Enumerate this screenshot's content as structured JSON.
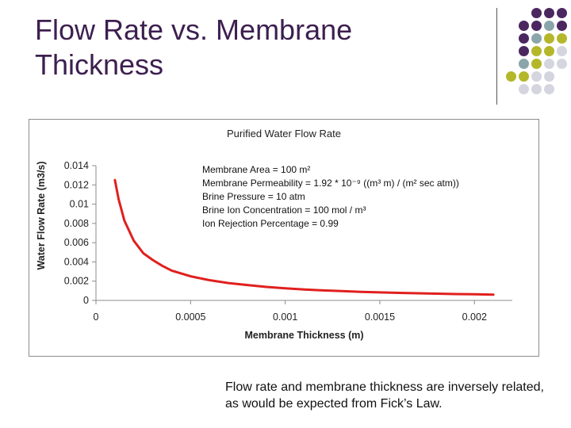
{
  "slide": {
    "title": "Flow Rate vs. Membrane Thickness",
    "caption": "Flow rate and membrane thickness are inversely related, as would be expected from Fick’s Law."
  },
  "decoration": {
    "dot_colors": [
      [
        "#ffffff",
        "#ffffff",
        "#4b2760",
        "#4b2760",
        "#4b2760"
      ],
      [
        "#ffffff",
        "#4b2760",
        "#4b2760",
        "#8ba6aa",
        "#4b2760"
      ],
      [
        "#ffffff",
        "#4b2760",
        "#8ba6aa",
        "#b4b72a",
        "#b4b72a"
      ],
      [
        "#ffffff",
        "#4b2760",
        "#b4b72a",
        "#b4b72a",
        "#d5d5e0"
      ],
      [
        "#ffffff",
        "#8ba6aa",
        "#b4b72a",
        "#d5d5e0",
        "#d5d5e0"
      ],
      [
        "#b4b72a",
        "#b4b72a",
        "#d5d5e0",
        "#d5d5e0",
        "#ffffff"
      ],
      [
        "#ffffff",
        "#d5d5e0",
        "#d5d5e0",
        "#d5d5e0",
        "#ffffff"
      ]
    ]
  },
  "chart_data": {
    "type": "line",
    "title": "Purified Water Flow Rate",
    "xlabel": "Membrane Thickness (m)",
    "ylabel": "Water Flow Rate (m3/s)",
    "xlim": [
      0,
      0.0022
    ],
    "ylim": [
      0,
      0.014
    ],
    "x_ticks": [
      0,
      0.0005,
      0.001,
      0.0015,
      0.002
    ],
    "x_tick_labels": [
      "0",
      "0.0005",
      "0.001",
      "0.0015",
      "0.002"
    ],
    "y_ticks": [
      0,
      0.002,
      0.004,
      0.006,
      0.008,
      0.01,
      0.012,
      0.014
    ],
    "y_tick_labels": [
      "0",
      "0.002",
      "0.004",
      "0.006",
      "0.008",
      "0.01",
      "0.012",
      "0.014"
    ],
    "grid": false,
    "legend": "none",
    "annotations": [
      "Membrane Area = 100 m²",
      "Membrane Permeability = 1.92 * 10⁻⁹ ((m³ m) / (m² sec atm))",
      "Brine Pressure = 10 atm",
      "Brine Ion Concentration = 100 mol / m³",
      "Ion Rejection Percentage = 0.99"
    ],
    "series": [
      {
        "color": "#e0201e",
        "x": [
          0.0001,
          0.00012,
          0.00015,
          0.0002,
          0.00025,
          0.0003,
          0.00035,
          0.0004,
          0.0005,
          0.0006,
          0.0007,
          0.0008,
          0.0009,
          0.001,
          0.0011,
          0.0012,
          0.0013,
          0.0014,
          0.0015,
          0.0016,
          0.0017,
          0.0018,
          0.0019,
          0.002,
          0.0021
        ],
        "y": [
          0.0125,
          0.0105,
          0.0083,
          0.0062,
          0.0049,
          0.0042,
          0.0036,
          0.0031,
          0.0025,
          0.0021,
          0.0018,
          0.0016,
          0.0014,
          0.00125,
          0.00114,
          0.00104,
          0.00096,
          0.00089,
          0.00083,
          0.00078,
          0.00074,
          0.0007,
          0.00066,
          0.00063,
          0.0006
        ]
      }
    ]
  }
}
